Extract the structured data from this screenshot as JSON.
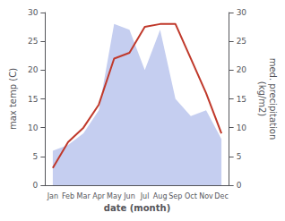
{
  "chart_data": {
    "type": "line",
    "categories": [
      "Jan",
      "Feb",
      "Mar",
      "Apr",
      "May",
      "Jun",
      "Jul",
      "Aug",
      "Sep",
      "Oct",
      "Nov",
      "Dec"
    ],
    "xlabel": "date (month)",
    "ylabel": "max temp (C)",
    "y2label": "med. precipitation\n(kg/m2)",
    "series": [
      {
        "type": "area",
        "color": "#c5cef0",
        "axis": "y2",
        "values": [
          6,
          7,
          9,
          13,
          28,
          27,
          20,
          27,
          15,
          12,
          13,
          8
        ]
      },
      {
        "type": "line",
        "color": "#c0392b",
        "values": [
          3,
          7.5,
          10,
          14,
          22,
          23,
          27.5,
          28,
          28,
          22,
          16,
          9
        ]
      }
    ],
    "ylim": [
      0,
      30
    ],
    "yticks": [
      0,
      5,
      10,
      15,
      20,
      25,
      30
    ],
    "y2lim": [
      0,
      30
    ],
    "y2ticks": [
      0,
      5,
      10,
      15,
      20,
      25,
      30
    ],
    "grid": false
  }
}
